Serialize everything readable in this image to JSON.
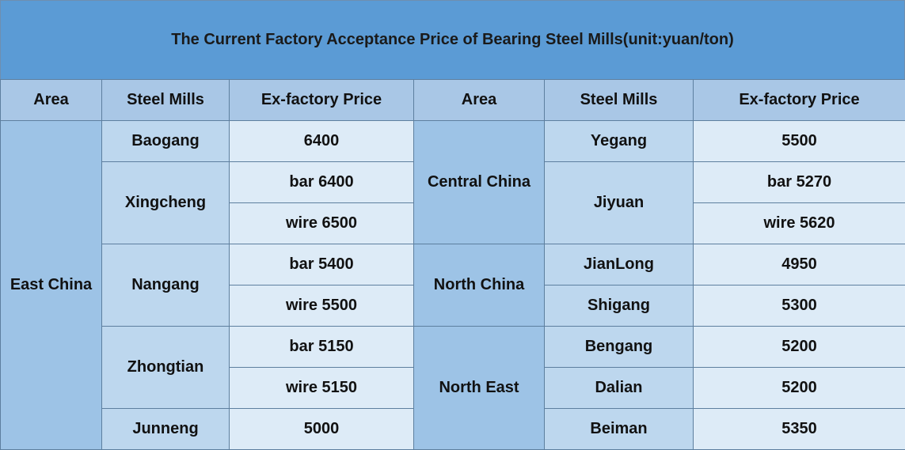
{
  "title": "The Current Factory Acceptance Price of Bearing Steel Mills(unit:yuan/ton)",
  "headers": {
    "left_area": "Area",
    "left_mills": "Steel Mills",
    "left_price": "Ex-factory Price",
    "right_area": "Area",
    "right_mills": "Steel Mills",
    "right_price": "Ex-factory Price"
  },
  "left": {
    "area": "East China",
    "mills": [
      {
        "name": "Baogang",
        "prices": [
          "6400"
        ]
      },
      {
        "name": "Xingcheng",
        "prices": [
          "bar 6400",
          "wire 6500"
        ]
      },
      {
        "name": "Nangang",
        "prices": [
          "bar 5400",
          "wire 5500"
        ]
      },
      {
        "name": "Zhongtian",
        "prices": [
          "bar 5150",
          "wire 5150"
        ]
      },
      {
        "name": "Junneng",
        "prices": [
          "5000"
        ]
      }
    ]
  },
  "right": {
    "areas": [
      {
        "name": "Central China",
        "mills": [
          {
            "name": "Yegang",
            "prices": [
              "5500"
            ]
          },
          {
            "name": "Jiyuan",
            "prices": [
              "bar 5270",
              "wire 5620"
            ]
          }
        ]
      },
      {
        "name": "North China",
        "mills": [
          {
            "name": "JianLong",
            "prices": [
              "4950"
            ]
          },
          {
            "name": "Shigang",
            "prices": [
              "5300"
            ]
          }
        ]
      },
      {
        "name": "North East",
        "mills": [
          {
            "name": "Bengang",
            "prices": [
              "5200"
            ]
          },
          {
            "name": "Dalian",
            "prices": [
              "5200"
            ]
          },
          {
            "name": "Beiman",
            "prices": [
              "5350"
            ]
          }
        ]
      }
    ]
  }
}
